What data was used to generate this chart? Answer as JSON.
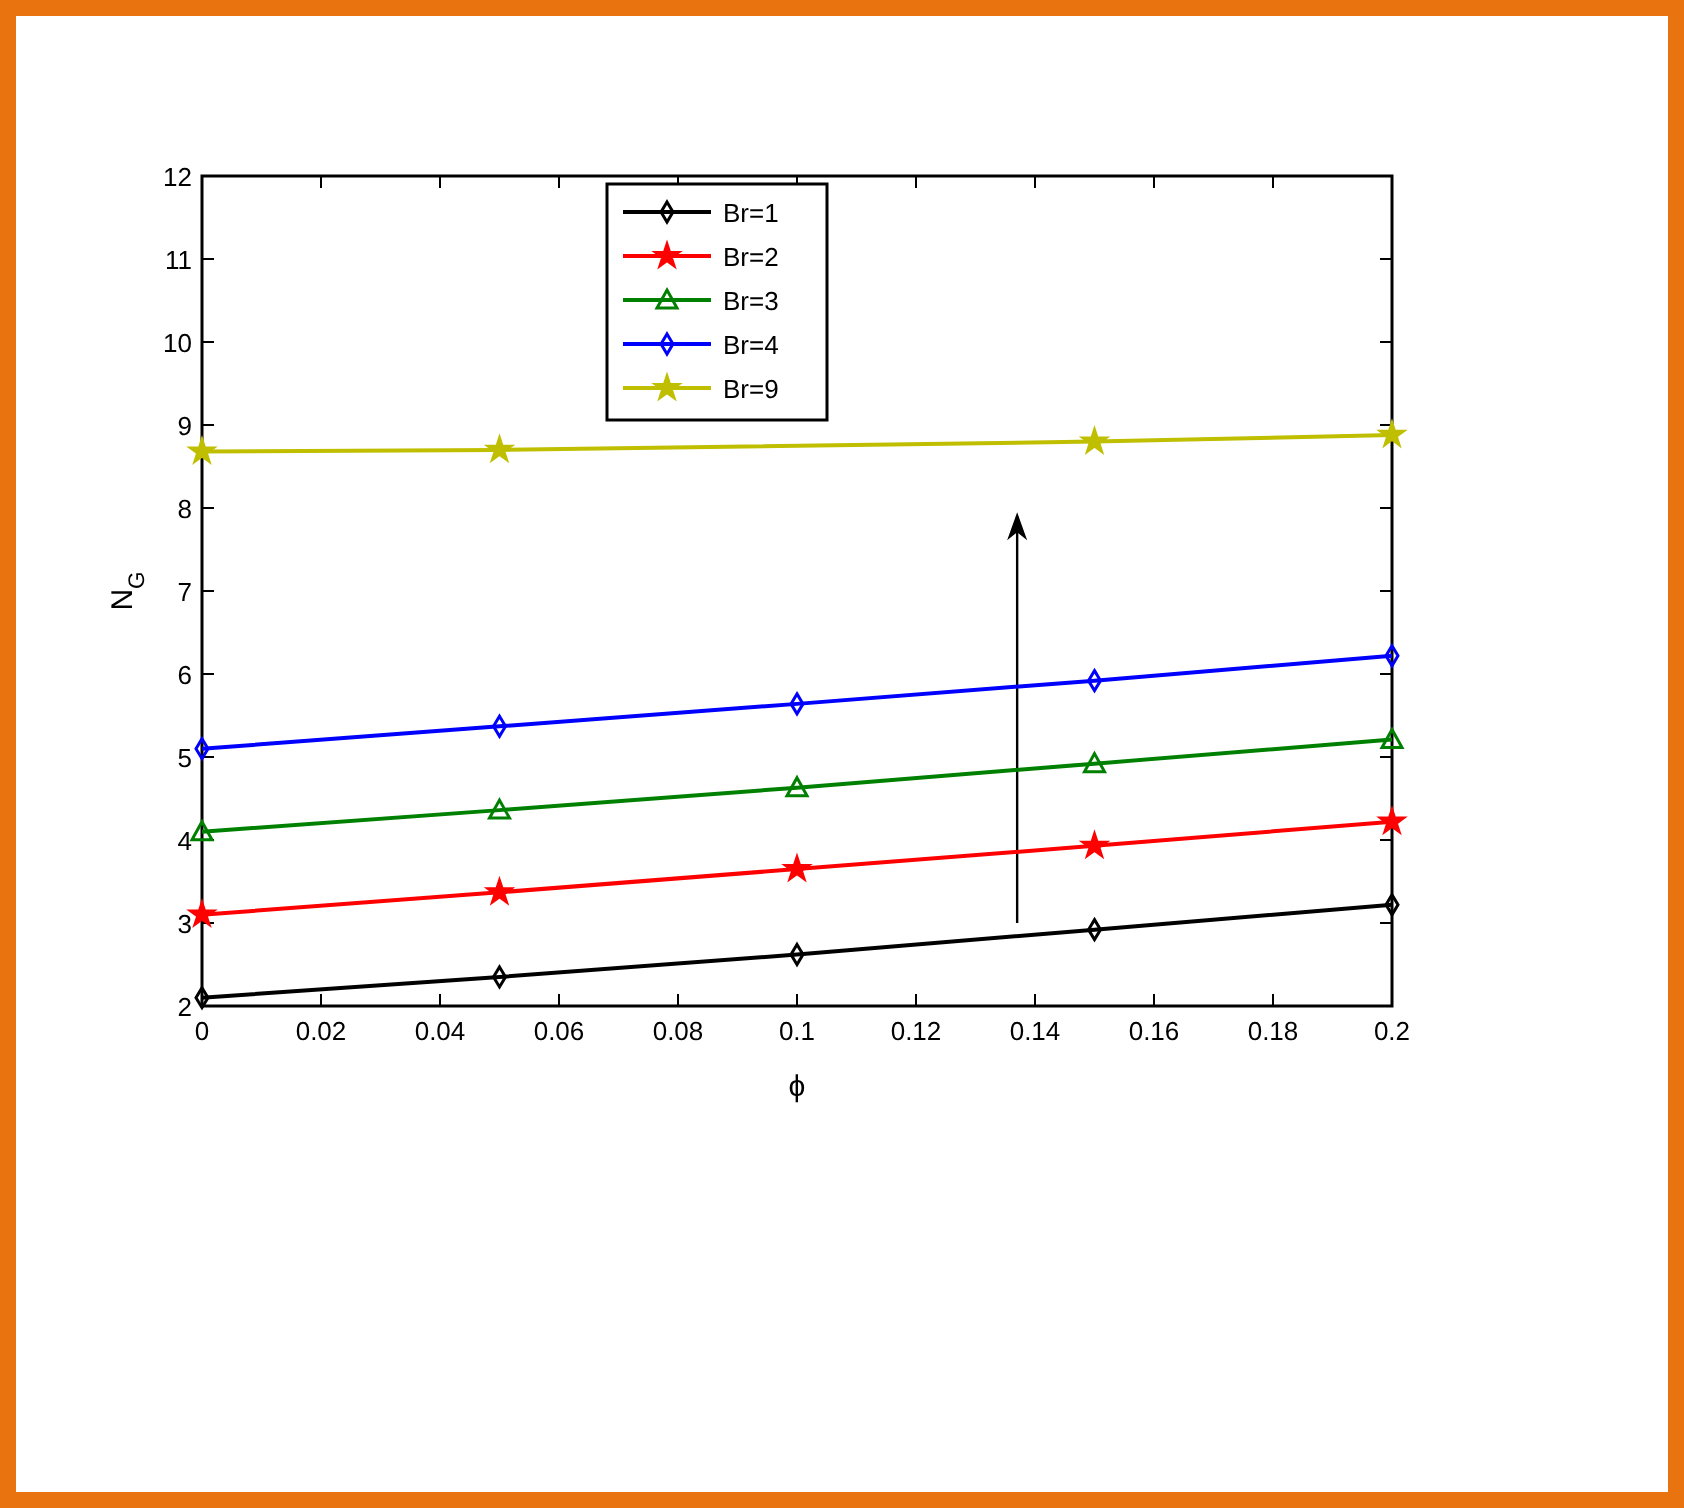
{
  "chart_data": {
    "type": "line",
    "xlabel": "ϕ",
    "ylabel": "N$_{G}$",
    "x": [
      0,
      0.05,
      0.1,
      0.15,
      0.2
    ],
    "series": [
      {
        "name": "Br=1",
        "color": "#000000",
        "marker": "diamond",
        "values": [
          2.1,
          2.35,
          2.62,
          2.92,
          3.22
        ]
      },
      {
        "name": "Br=2",
        "color": "#ff0000",
        "marker": "star",
        "values": [
          3.1,
          3.37,
          3.65,
          3.93,
          4.22
        ]
      },
      {
        "name": "Br=3",
        "color": "#008000",
        "marker": "triangle",
        "values": [
          4.1,
          4.36,
          4.63,
          4.92,
          5.21
        ]
      },
      {
        "name": "Br=4",
        "color": "#0000ff",
        "marker": "diamond",
        "values": [
          5.1,
          5.37,
          5.64,
          5.92,
          6.22
        ]
      },
      {
        "name": "Br=9",
        "color": "#bfbf00",
        "marker": "star",
        "values": [
          8.68,
          8.7,
          null,
          8.8,
          8.88
        ]
      }
    ],
    "xlim": [
      0,
      0.2
    ],
    "xticks": [
      0,
      0.02,
      0.04,
      0.06,
      0.08,
      0.1,
      0.12,
      0.14,
      0.16,
      0.18,
      0.2
    ],
    "ylim": [
      2,
      12
    ],
    "yticks": [
      2,
      3,
      4,
      5,
      6,
      7,
      8,
      9,
      10,
      11,
      12
    ],
    "legend": "top",
    "grid": false,
    "line_style": "solid"
  }
}
